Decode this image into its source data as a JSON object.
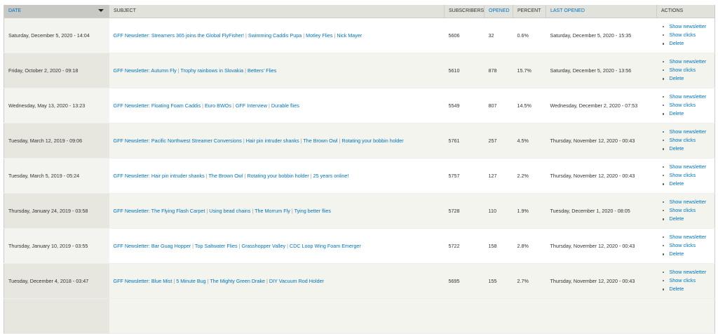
{
  "headers": {
    "date": "Date",
    "subject": "Subject",
    "subscribers": "Subscribers",
    "opened": "Opened",
    "percent": "Percent",
    "last_opened": "Last opened",
    "actions": "Actions"
  },
  "action_labels": [
    "Show newsletter",
    "Show clicks",
    "Delete"
  ],
  "rows": [
    {
      "date": "Saturday, December 5, 2020 - 14:04",
      "subject": [
        "GFF Newsletter: Streamers 365 joins the Global FlyFisher!",
        "Swimming Caddis Pupa",
        "Motley Flies",
        "Nick Mayer"
      ],
      "subscribers": "5606",
      "opened": "32",
      "percent": "0.6%",
      "last_opened": "Saturday, December 5, 2020 - 15:35"
    },
    {
      "date": "Friday, October 2, 2020 - 09:18",
      "subject": [
        "GFF Newsletter: Autumn Fly",
        "Trophy rainbows in Slovakia",
        "Betters' Flies"
      ],
      "subscribers": "5610",
      "opened": "878",
      "percent": "15.7%",
      "last_opened": "Saturday, December 5, 2020 - 13:56"
    },
    {
      "date": "Wednesday, May 13, 2020 - 13:23",
      "subject": [
        "GFF Newsletter: Floating Foam Caddis",
        "Euro BWOs",
        "GFF Interview",
        "Durable flies"
      ],
      "subscribers": "5549",
      "opened": "807",
      "percent": "14.5%",
      "last_opened": "Wednesday, December 2, 2020 - 07:53"
    },
    {
      "date": "Tuesday, March 12, 2019 - 09:06",
      "subject": [
        "GFF Newsletter: Pacific Northwest Streamer Conversions",
        "Hair pin intruder shanks",
        "The Brown Owl",
        "Rotating your bobbin holder"
      ],
      "subscribers": "5761",
      "opened": "257",
      "percent": "4.5%",
      "last_opened": "Thursday, November 12, 2020 - 00:43"
    },
    {
      "date": "Tuesday, March 5, 2019 - 05:24",
      "subject": [
        "GFF Newsletter: Hair pin intruder shanks",
        "The Brown Owl",
        "Rotating your bobbin holder",
        "25 years online!"
      ],
      "subscribers": "5757",
      "opened": "127",
      "percent": "2.2%",
      "last_opened": "Thursday, November 12, 2020 - 00:43"
    },
    {
      "date": "Thursday, January 24, 2019 - 03:58",
      "subject": [
        "GFF Newsletter: The Flying Flash Carpet",
        "Using bead chains",
        "The Morrum Fly",
        "Tying better flies"
      ],
      "subscribers": "5728",
      "opened": "110",
      "percent": "1.9%",
      "last_opened": "Tuesday, December 1, 2020 - 08:05"
    },
    {
      "date": "Thursday, January 10, 2019 - 03:55",
      "subject": [
        "GFF Newsletter: Bar Guag Hopper",
        "Top Saltwater Flies",
        "Grasshopper Valley",
        "CDC Loop Wing Foam Emerger"
      ],
      "subscribers": "5722",
      "opened": "158",
      "percent": "2.8%",
      "last_opened": "Thursday, November 12, 2020 - 00:43"
    },
    {
      "date": "Tuesday, December 4, 2018 - 03:47",
      "subject": [
        "GFF Newsletter: Blue Mist",
        "5 Minute Bug",
        "The Mighty Green Drake",
        "DIY Vacuum Rod Holder"
      ],
      "subscribers": "5695",
      "opened": "155",
      "percent": "2.7%",
      "last_opened": "Thursday, November 12, 2020 - 00:43"
    }
  ]
}
